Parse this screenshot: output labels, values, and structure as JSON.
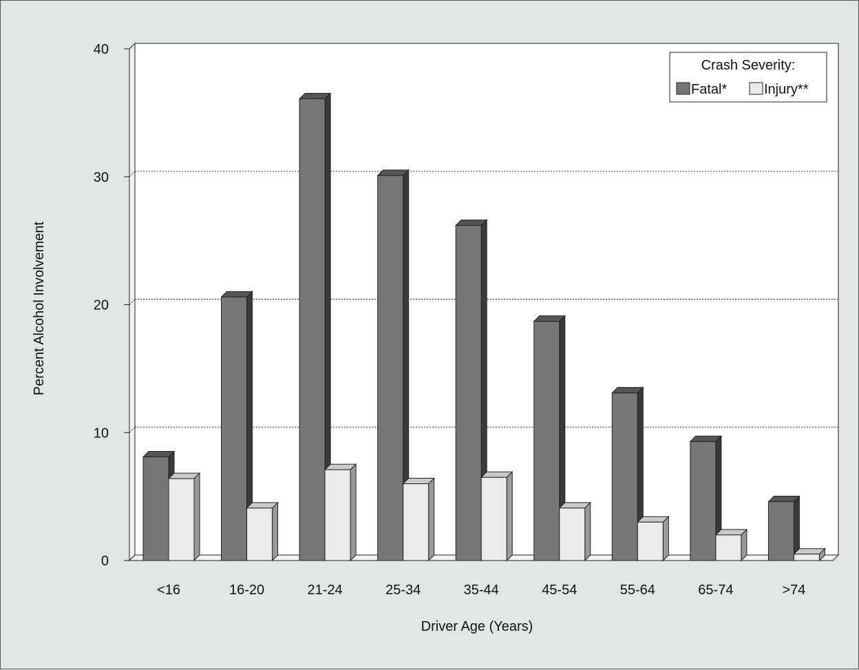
{
  "chart_data": {
    "type": "bar",
    "style": "3d-clustered",
    "xlabel": "Driver Age (Years)",
    "ylabel": "Percent Alcohol Involvement",
    "ylim": [
      0,
      40
    ],
    "yticks": [
      "0",
      "10",
      "20",
      "30",
      "40"
    ],
    "grid": "horizontal-dotted",
    "legend_position": "top-right",
    "legend_title": "Crash Severity:",
    "categories": [
      "<16",
      "16-20",
      "21-24",
      "25-34",
      "35-44",
      "45-54",
      "55-64",
      "65-74",
      ">74"
    ],
    "series": [
      {
        "name": "Fatal*",
        "color": "#777777",
        "values": [
          8.1,
          20.6,
          36.1,
          30.1,
          26.2,
          18.7,
          13.1,
          9.3,
          4.6
        ]
      },
      {
        "name": "Injury**",
        "color": "#ebebeb",
        "values": [
          6.4,
          4.1,
          7.1,
          6.0,
          6.5,
          4.1,
          3.0,
          2.0,
          0.5
        ]
      }
    ]
  },
  "colors": {
    "background": "#dfe6e3",
    "plot_area": "#ffffff",
    "fatal_side": "#3a3a3a",
    "fatal_top": "#555555",
    "injury_side": "#9a9a9a",
    "injury_top": "#c9c9c9"
  }
}
